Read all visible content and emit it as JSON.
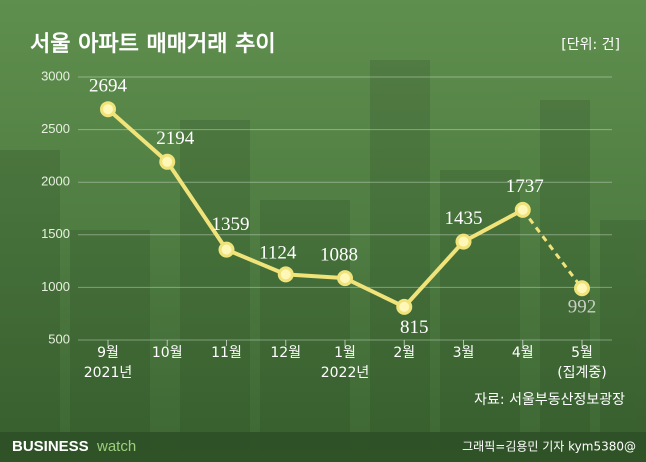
{
  "chart_data": {
    "type": "line",
    "title": "서울 아파트 매매거래 추이",
    "unit": "[단위: 건]",
    "categories": [
      "9월",
      "10월",
      "11월",
      "12월",
      "1월",
      "2월",
      "3월",
      "4월",
      "5월"
    ],
    "category_sublabels": [
      "2021년",
      null,
      null,
      null,
      "2022년",
      null,
      null,
      null,
      "(집계중)"
    ],
    "values": [
      2694,
      2194,
      1359,
      1124,
      1088,
      815,
      1435,
      1737,
      992
    ],
    "color": "#f0e37a",
    "dashed_last_segment": true,
    "ylim": [
      500,
      3000
    ],
    "yticks": [
      500,
      1000,
      1500,
      2000,
      2500,
      3000
    ],
    "grid": true,
    "source": "자료: 서울부동산정보광장",
    "brand": [
      "BUSINESS",
      "watch"
    ],
    "credit": "그래픽=김용민 기자 kym5380@"
  }
}
